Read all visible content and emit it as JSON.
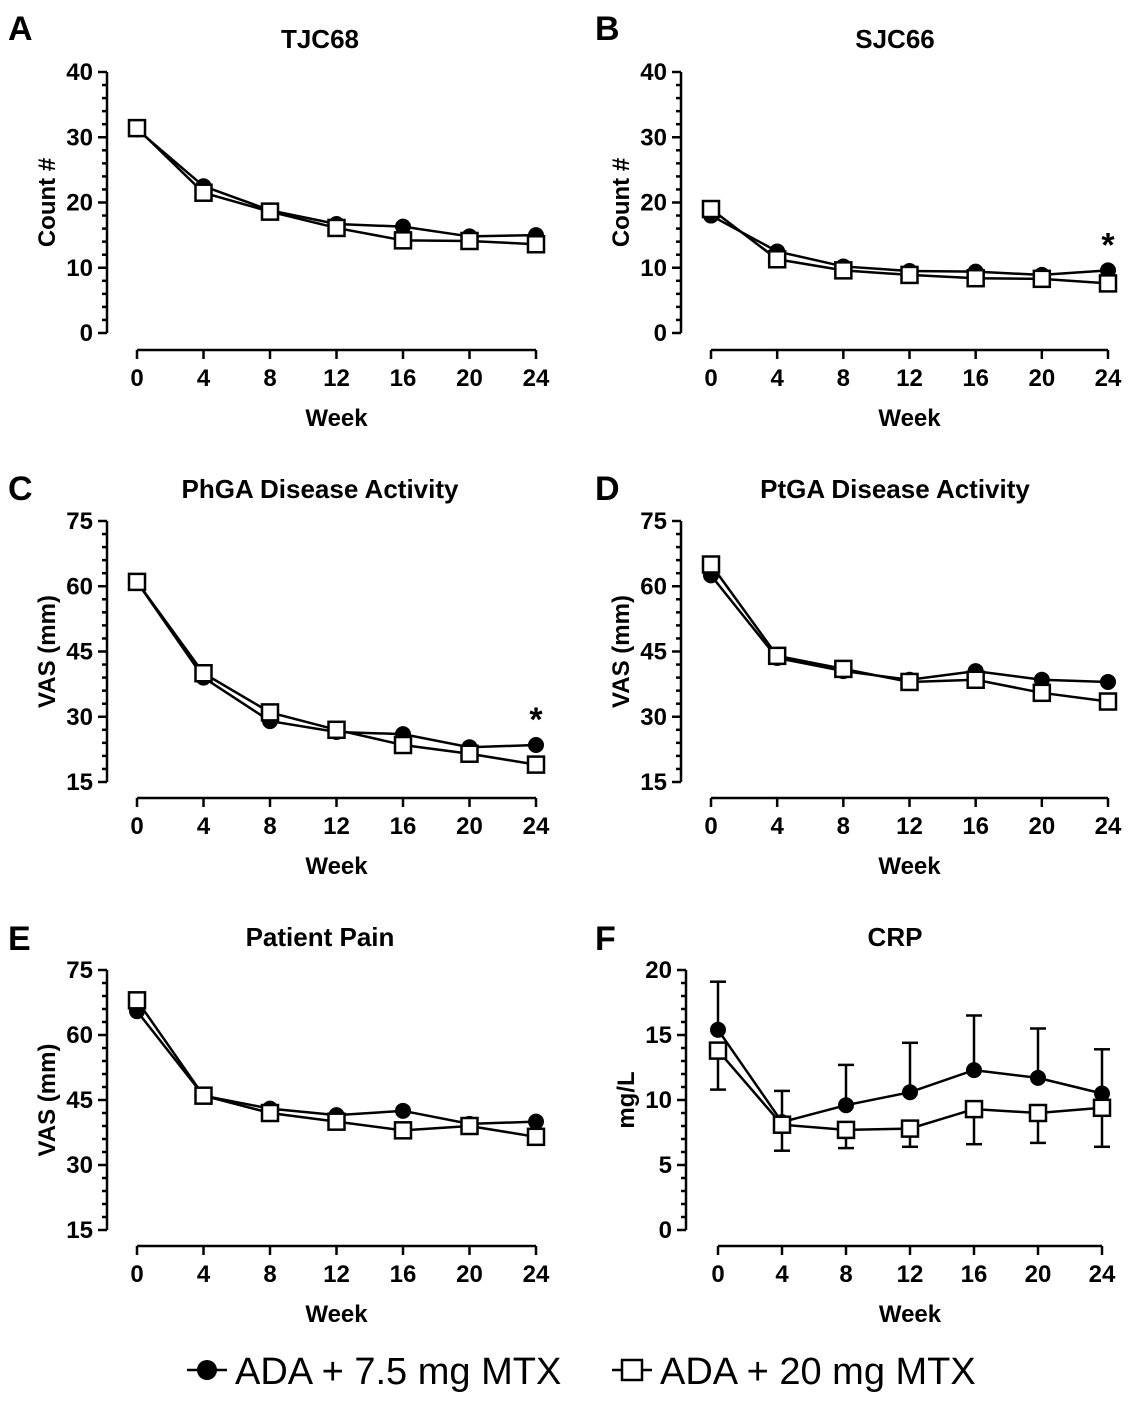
{
  "legend": [
    {
      "marker": "filled-circle",
      "label": "ADA + 7.5 mg MTX"
    },
    {
      "marker": "open-square",
      "label": "ADA + 20 mg MTX"
    }
  ],
  "chart_data": [
    {
      "panel": "A",
      "type": "line",
      "title": "TJC68",
      "xlabel": "Week",
      "ylabel": "Count #",
      "x": [
        0,
        4,
        8,
        12,
        16,
        20,
        24
      ],
      "xticks": [
        "0",
        "4",
        "8",
        "12",
        "16",
        "20",
        "24"
      ],
      "ylim": [
        0,
        40
      ],
      "yticks": [
        0,
        10,
        20,
        30,
        40
      ],
      "series": [
        {
          "name": "ADA + 7.5 mg MTX",
          "marker": "filled-circle",
          "values": [
            31.2,
            22.5,
            18.8,
            16.7,
            16.3,
            14.8,
            15.0
          ]
        },
        {
          "name": "ADA + 20 mg MTX",
          "marker": "open-square",
          "values": [
            31.4,
            21.5,
            18.6,
            16.1,
            14.2,
            14.1,
            13.6
          ]
        }
      ],
      "annotations": []
    },
    {
      "panel": "B",
      "type": "line",
      "title": "SJC66",
      "xlabel": "Week",
      "ylabel": "Count #",
      "x": [
        0,
        4,
        8,
        12,
        16,
        20,
        24
      ],
      "xticks": [
        "0",
        "4",
        "8",
        "12",
        "16",
        "20",
        "24"
      ],
      "ylim": [
        0,
        40
      ],
      "yticks": [
        0,
        10,
        20,
        30,
        40
      ],
      "series": [
        {
          "name": "ADA + 7.5 mg MTX",
          "marker": "filled-circle",
          "values": [
            18.0,
            12.5,
            10.2,
            9.5,
            9.4,
            8.9,
            9.6
          ]
        },
        {
          "name": "ADA + 20 mg MTX",
          "marker": "open-square",
          "values": [
            19.0,
            11.3,
            9.6,
            8.9,
            8.4,
            8.3,
            7.6
          ]
        }
      ],
      "annotations": [
        {
          "text": "*",
          "x": 24
        }
      ]
    },
    {
      "panel": "C",
      "type": "line",
      "title": "PhGA Disease Activity",
      "xlabel": "Week",
      "ylabel": "VAS (mm)",
      "x": [
        0,
        4,
        8,
        12,
        16,
        20,
        24
      ],
      "xticks": [
        "0",
        "4",
        "8",
        "12",
        "16",
        "20",
        "24"
      ],
      "ylim": [
        15,
        75
      ],
      "yticks": [
        15,
        30,
        45,
        60,
        75
      ],
      "series": [
        {
          "name": "ADA + 7.5 mg MTX",
          "marker": "filled-circle",
          "values": [
            61.0,
            39.0,
            29.0,
            26.5,
            26.0,
            23.0,
            23.5
          ]
        },
        {
          "name": "ADA + 20 mg MTX",
          "marker": "open-square",
          "values": [
            61.0,
            40.0,
            31.0,
            27.0,
            23.5,
            21.5,
            19.0
          ]
        }
      ],
      "annotations": [
        {
          "text": "*",
          "x": 24
        }
      ]
    },
    {
      "panel": "D",
      "type": "line",
      "title": "PtGA Disease Activity",
      "xlabel": "Week",
      "ylabel": "VAS (mm)",
      "x": [
        0,
        4,
        8,
        12,
        16,
        20,
        24
      ],
      "xticks": [
        "0",
        "4",
        "8",
        "12",
        "16",
        "20",
        "24"
      ],
      "ylim": [
        15,
        75
      ],
      "yticks": [
        15,
        30,
        45,
        60,
        75
      ],
      "series": [
        {
          "name": "ADA + 7.5 mg MTX",
          "marker": "filled-circle",
          "values": [
            62.5,
            43.5,
            40.5,
            38.5,
            40.5,
            38.5,
            38.0
          ]
        },
        {
          "name": "ADA + 20 mg MTX",
          "marker": "open-square",
          "values": [
            65.0,
            44.0,
            41.0,
            38.0,
            38.5,
            35.5,
            33.5
          ]
        }
      ],
      "annotations": []
    },
    {
      "panel": "E",
      "type": "line",
      "title": "Patient Pain",
      "xlabel": "Week",
      "ylabel": "VAS (mm)",
      "x": [
        0,
        4,
        8,
        12,
        16,
        20,
        24
      ],
      "xticks": [
        "0",
        "4",
        "8",
        "12",
        "16",
        "20",
        "24"
      ],
      "ylim": [
        15,
        75
      ],
      "yticks": [
        15,
        30,
        45,
        60,
        75
      ],
      "series": [
        {
          "name": "ADA + 7.5 mg MTX",
          "marker": "filled-circle",
          "values": [
            65.5,
            46.0,
            43.0,
            41.5,
            42.5,
            39.5,
            40.0
          ]
        },
        {
          "name": "ADA + 20 mg MTX",
          "marker": "open-square",
          "values": [
            68.0,
            46.0,
            42.0,
            40.0,
            38.0,
            39.0,
            36.5
          ]
        }
      ],
      "annotations": []
    },
    {
      "panel": "F",
      "type": "line",
      "title": "CRP",
      "xlabel": "Week",
      "ylabel": "mg/L",
      "x": [
        0,
        4,
        8,
        12,
        16,
        20,
        24
      ],
      "xticks": [
        "0",
        "4",
        "8",
        "12",
        "16",
        "20",
        "24"
      ],
      "ylim": [
        0,
        20
      ],
      "yticks": [
        0,
        5,
        10,
        15,
        20
      ],
      "series": [
        {
          "name": "ADA + 7.5 mg MTX",
          "marker": "filled-circle",
          "values": [
            15.4,
            8.3,
            9.6,
            10.6,
            12.3,
            11.7,
            10.5
          ],
          "error_upper": [
            19.1,
            10.7,
            12.7,
            14.4,
            16.5,
            15.5,
            13.9
          ]
        },
        {
          "name": "ADA + 20 mg MTX",
          "marker": "open-square",
          "values": [
            13.8,
            8.1,
            7.7,
            7.8,
            9.3,
            9.0,
            9.4
          ],
          "error_lower": [
            10.8,
            6.1,
            6.3,
            6.4,
            6.6,
            6.7,
            6.4
          ]
        }
      ],
      "annotations": []
    }
  ]
}
